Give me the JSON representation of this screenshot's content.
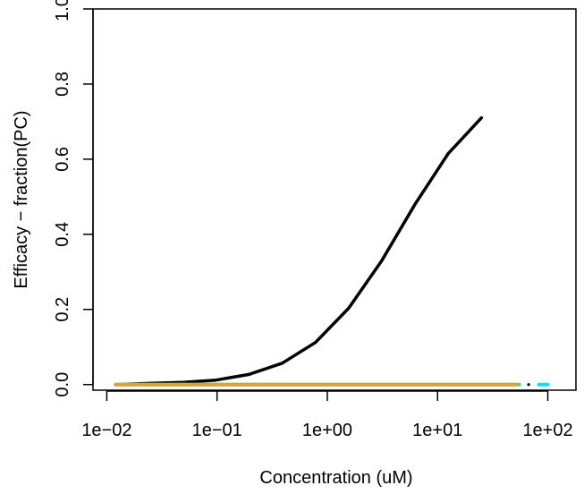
{
  "chart_data": {
    "type": "line",
    "xlabel": "Concentration (uM)",
    "ylabel": "Efficacy − fraction(PC)",
    "x_scale": "log",
    "xlim": [
      0.0075,
      180
    ],
    "ylim": [
      -0.015,
      1.0
    ],
    "x_ticks": [
      {
        "value": 0.01,
        "label": "1e−02"
      },
      {
        "value": 0.1,
        "label": "1e−01"
      },
      {
        "value": 1,
        "label": "1e+00"
      },
      {
        "value": 10,
        "label": "1e+01"
      },
      {
        "value": 100,
        "label": "1e+02"
      }
    ],
    "y_ticks": [
      {
        "value": 0.0,
        "label": "0.0"
      },
      {
        "value": 0.2,
        "label": "0.2"
      },
      {
        "value": 0.4,
        "label": "0.4"
      },
      {
        "value": 0.6,
        "label": "0.6"
      },
      {
        "value": 0.8,
        "label": "0.8"
      },
      {
        "value": 1.0,
        "label": "1.0"
      }
    ],
    "grid": false,
    "series": [
      {
        "color": "#000000",
        "x": [
          0.012,
          0.024,
          0.049,
          0.098,
          0.195,
          0.39,
          0.78,
          1.56,
          3.12,
          6.25,
          12.5,
          25
        ],
        "values": [
          0.0,
          0.003,
          0.006,
          0.012,
          0.027,
          0.057,
          0.112,
          0.203,
          0.33,
          0.48,
          0.615,
          0.71
        ]
      },
      {
        "color": "#00e5ee",
        "x": [
          0.012,
          55,
          83,
          100
        ],
        "values": [
          0.0,
          0.0,
          0.0,
          0.0
        ],
        "segments": [
          [
            0.012,
            55
          ],
          [
            83,
            100
          ]
        ]
      },
      {
        "color": "#000000",
        "style": "points",
        "x": [
          67
        ],
        "values": [
          0.0
        ]
      },
      {
        "color": "#e8a020",
        "x": [
          0.012,
          52
        ],
        "values": [
          0.0,
          0.0
        ]
      }
    ]
  }
}
